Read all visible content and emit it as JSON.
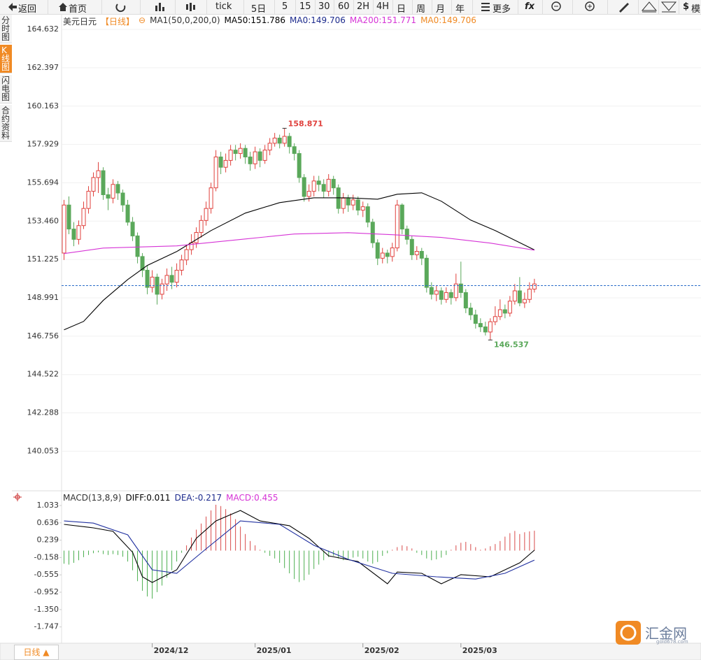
{
  "toolbar": [
    "返回",
    "首页",
    "tick",
    "5日",
    "5",
    "15",
    "30",
    "60",
    "2H",
    "4H",
    "日",
    "周",
    "月",
    "年",
    "更多",
    "fx",
    "$",
    "模"
  ],
  "side_tabs": [
    "分时图",
    "K线图",
    "闪电图",
    "合约资料"
  ],
  "period_button": "日线 ▲",
  "watermark": {
    "name": "汇金网",
    "url": "gold678.com"
  },
  "chart_data": [
    {
      "type": "candlestick",
      "title": "美元日元",
      "period": "【日线】",
      "toggle": "⊖",
      "indicator": "MA1(50,0,200,0)",
      "legend": [
        {
          "text": "MA50:151.786",
          "color": "#000000"
        },
        {
          "text": "MA0:149.706",
          "color": "#1c2a8c"
        },
        {
          "text": "MA200:151.771",
          "color": "#d633d6"
        },
        {
          "text": "MA0:149.706",
          "color": "#f08a24"
        }
      ],
      "open": [
        151.6,
        154.4,
        153.0,
        152.4,
        153.2,
        154.2,
        155.2,
        156.0,
        156.4,
        155.0,
        154.8,
        155.6,
        155.1,
        154.4,
        153.4,
        152.6,
        151.4,
        150.6,
        149.6,
        150.2,
        149.2,
        149.8,
        150.3,
        149.9,
        150.6,
        151.2,
        151.8,
        152.2,
        152.8,
        153.5,
        154.2,
        155.4,
        157.2,
        156.6,
        157.0,
        157.6,
        157.4,
        157.7,
        157.2,
        156.8,
        157.5,
        157.0,
        157.6,
        158.0,
        158.3,
        158.0,
        158.4,
        157.8,
        157.4,
        156.0,
        154.9,
        155.2,
        155.8,
        155.6,
        155.2,
        155.9,
        155.4,
        154.2,
        154.8,
        154.4,
        154.7,
        154.1,
        154.3,
        153.4,
        152.2,
        151.3,
        151.6,
        151.4,
        151.9,
        154.4,
        153.0,
        152.4,
        151.5,
        151.7,
        151.3,
        149.6,
        149.2,
        149.4,
        148.9,
        149.3,
        149.0,
        149.8,
        149.3,
        148.4,
        148.0,
        147.5,
        147.3,
        147.0,
        147.6,
        147.9,
        148.3,
        148.1,
        148.8,
        149.4,
        148.7,
        148.9,
        149.5
      ],
      "high": [
        154.7,
        154.9,
        153.4,
        153.5,
        154.6,
        155.5,
        156.3,
        156.9,
        156.6,
        155.4,
        155.9,
        155.8,
        155.3,
        154.7,
        153.7,
        152.8,
        151.6,
        150.9,
        150.6,
        150.4,
        150.1,
        150.7,
        150.8,
        151.0,
        151.5,
        152.1,
        152.7,
        153.1,
        153.8,
        154.6,
        155.7,
        157.6,
        157.5,
        157.4,
        157.9,
        157.9,
        158.0,
        157.9,
        157.5,
        157.8,
        157.7,
        157.9,
        158.3,
        158.6,
        158.5,
        158.871,
        158.6,
        158.0,
        157.6,
        156.2,
        155.6,
        156.1,
        156.1,
        155.9,
        156.2,
        156.1,
        155.6,
        155.1,
        155.0,
        155.0,
        154.9,
        154.6,
        154.5,
        153.6,
        152.4,
        151.9,
        151.8,
        152.2,
        154.7,
        154.5,
        153.2,
        152.6,
        152.0,
        151.9,
        151.5,
        149.9,
        149.7,
        149.6,
        149.6,
        149.5,
        150.4,
        151.1,
        149.5,
        148.7,
        148.3,
        147.8,
        147.6,
        147.8,
        148.5,
        148.9,
        148.6,
        149.1,
        149.8,
        150.2,
        149.3,
        149.9,
        150.1
      ],
      "low": [
        151.2,
        152.7,
        152.0,
        152.1,
        153.0,
        153.9,
        154.9,
        155.1,
        154.7,
        154.1,
        154.5,
        154.7,
        154.0,
        153.2,
        152.3,
        151.0,
        150.2,
        149.2,
        149.3,
        148.6,
        148.9,
        149.4,
        149.5,
        149.6,
        150.3,
        150.9,
        151.5,
        151.9,
        152.5,
        153.2,
        153.9,
        155.2,
        156.2,
        156.3,
        156.7,
        157.0,
        157.1,
        156.8,
        156.4,
        156.5,
        156.6,
        156.8,
        157.3,
        157.8,
        157.7,
        157.8,
        157.4,
        157.0,
        155.7,
        154.6,
        154.6,
        154.9,
        155.2,
        154.8,
        154.9,
        155.0,
        153.9,
        153.9,
        154.0,
        154.1,
        153.8,
        153.7,
        153.1,
        151.9,
        150.9,
        151.0,
        151.0,
        151.1,
        151.7,
        152.7,
        152.1,
        151.2,
        151.2,
        150.9,
        149.3,
        148.9,
        148.8,
        148.6,
        148.7,
        148.6,
        148.8,
        149.0,
        148.1,
        147.7,
        147.2,
        147.0,
        146.8,
        146.537,
        147.4,
        147.7,
        147.8,
        147.9,
        148.6,
        148.5,
        148.4,
        148.7,
        149.3
      ],
      "close": [
        154.4,
        153.0,
        152.4,
        153.2,
        154.2,
        155.2,
        156.0,
        156.4,
        155.0,
        154.8,
        155.6,
        155.1,
        154.4,
        153.4,
        152.6,
        151.4,
        150.6,
        149.6,
        150.2,
        149.2,
        149.8,
        150.3,
        149.9,
        150.6,
        151.2,
        151.8,
        152.2,
        152.8,
        153.5,
        154.2,
        155.4,
        157.2,
        156.6,
        157.0,
        157.6,
        157.4,
        157.7,
        157.2,
        156.8,
        157.5,
        157.0,
        157.6,
        158.0,
        158.3,
        158.0,
        158.4,
        157.8,
        157.4,
        156.0,
        154.9,
        155.2,
        155.8,
        155.6,
        155.2,
        155.9,
        155.4,
        154.2,
        154.8,
        154.4,
        154.7,
        154.1,
        154.3,
        153.4,
        152.2,
        151.3,
        151.6,
        151.4,
        151.9,
        154.4,
        153.0,
        152.4,
        151.5,
        151.7,
        151.3,
        149.6,
        149.2,
        149.4,
        148.9,
        149.3,
        149.0,
        149.8,
        149.3,
        148.4,
        148.0,
        147.5,
        147.3,
        147.0,
        147.6,
        147.9,
        148.3,
        148.1,
        148.8,
        149.4,
        148.7,
        148.9,
        149.5,
        149.8
      ],
      "up_color": "#e0403c",
      "down_color": "#5aa85a",
      "lines": [
        {
          "color": "#000000",
          "x": [
            0,
            4,
            8,
            13,
            17,
            23,
            30,
            37,
            44,
            51,
            58,
            64,
            68,
            73,
            77,
            83,
            88,
            96
          ],
          "values": [
            147.13,
            147.62,
            148.84,
            150.06,
            150.88,
            151.69,
            152.91,
            153.93,
            154.54,
            154.82,
            154.82,
            154.74,
            155.03,
            155.11,
            154.62,
            153.52,
            152.91,
            151.786
          ]
        },
        {
          "color": "#d633d6",
          "x": [
            0,
            8,
            23,
            37,
            47,
            58,
            67,
            77,
            87,
            96
          ],
          "values": [
            151.57,
            151.89,
            152.02,
            152.42,
            152.71,
            152.79,
            152.67,
            152.51,
            152.18,
            151.771
          ]
        }
      ],
      "current_price": 149.706,
      "current_price_color": "#2a6cc9",
      "grid": true,
      "xlim": [
        -0.5,
        130
      ],
      "ylim": [
        137.83,
        165.53
      ],
      "yticks": [
        164.632,
        162.397,
        160.163,
        157.929,
        155.694,
        {
          "value": 153.46,
          "label": "153.460"
        },
        151.225,
        148.991,
        146.756,
        144.522,
        142.288,
        140.053
      ]
    },
    {
      "type": "macd",
      "title": "MACD(13,8,9)",
      "legend": [
        {
          "text": "DIFF:0.011",
          "color": "#000000"
        },
        {
          "text": "DEA:-0.217",
          "color": "#1c2a8c"
        },
        {
          "text": "MACD:0.455",
          "color": "#d633d6"
        }
      ],
      "histogram": [
        -0.3,
        -0.32,
        -0.28,
        -0.22,
        -0.15,
        -0.1,
        -0.06,
        -0.04,
        -0.08,
        -0.1,
        -0.08,
        -0.1,
        -0.14,
        -0.25,
        -0.45,
        -0.7,
        -0.92,
        -1.05,
        -1.1,
        -0.95,
        -0.8,
        -0.62,
        -0.45,
        -0.25,
        -0.05,
        0.12,
        0.3,
        0.48,
        0.62,
        0.78,
        0.92,
        1.05,
        1.02,
        0.95,
        0.85,
        0.72,
        0.55,
        0.38,
        0.22,
        0.12,
        0.02,
        -0.05,
        -0.12,
        -0.18,
        -0.28,
        -0.4,
        -0.52,
        -0.65,
        -0.72,
        -0.68,
        -0.55,
        -0.42,
        -0.32,
        -0.22,
        -0.15,
        -0.12,
        -0.18,
        -0.22,
        -0.2,
        -0.16,
        -0.14,
        -0.18,
        -0.25,
        -0.3,
        -0.26,
        -0.12,
        -0.06,
        0.02,
        0.08,
        0.12,
        0.1,
        0.05,
        -0.05,
        -0.1,
        -0.18,
        -0.22,
        -0.2,
        -0.16,
        -0.1,
        0.02,
        0.12,
        0.18,
        0.2,
        0.15,
        0.08,
        0.02,
        0.05,
        0.1,
        0.15,
        0.22,
        0.32,
        0.4,
        0.45,
        0.38,
        0.42,
        0.44,
        0.455
      ],
      "up_color": "#d84a4a",
      "down_color": "#4caf50",
      "lines": [
        {
          "color": "#000000",
          "x": [
            0,
            6,
            10,
            14,
            16,
            18,
            23,
            27,
            31,
            36,
            40,
            46,
            50,
            54,
            60,
            66,
            68,
            73,
            77,
            81,
            87,
            93,
            96
          ],
          "values": [
            0.6,
            0.52,
            0.44,
            -0.04,
            -0.6,
            -0.73,
            -0.44,
            0.28,
            0.68,
            0.92,
            0.68,
            0.57,
            0.28,
            -0.12,
            -0.25,
            -0.76,
            -0.49,
            -0.52,
            -0.76,
            -0.55,
            -0.6,
            -0.28,
            0.011
          ]
        },
        {
          "color": "#2030a0",
          "x": [
            0,
            6,
            13,
            18,
            23,
            29,
            36,
            44,
            51,
            58,
            67,
            76,
            84,
            90,
            96
          ],
          "values": [
            0.68,
            0.63,
            0.36,
            -0.44,
            -0.52,
            0.04,
            0.68,
            0.6,
            0.12,
            -0.2,
            -0.52,
            -0.6,
            -0.65,
            -0.52,
            -0.217
          ]
        }
      ],
      "xlim": [
        -0.5,
        130
      ],
      "xticks": [
        {
          "value": 18,
          "label": "2024/12"
        },
        {
          "value": 39,
          "label": "2025/01"
        },
        {
          "value": 61,
          "label": "2025/02"
        },
        {
          "value": 81,
          "label": "2025/03"
        }
      ],
      "ylim": [
        -2.04,
        1.353
      ],
      "yticks": [
        1.033,
        0.636,
        0.239,
        -0.158,
        -0.555,
        -0.952,
        {
          "value": -1.35,
          "label": "-1.350"
        },
        -1.747
      ]
    }
  ]
}
